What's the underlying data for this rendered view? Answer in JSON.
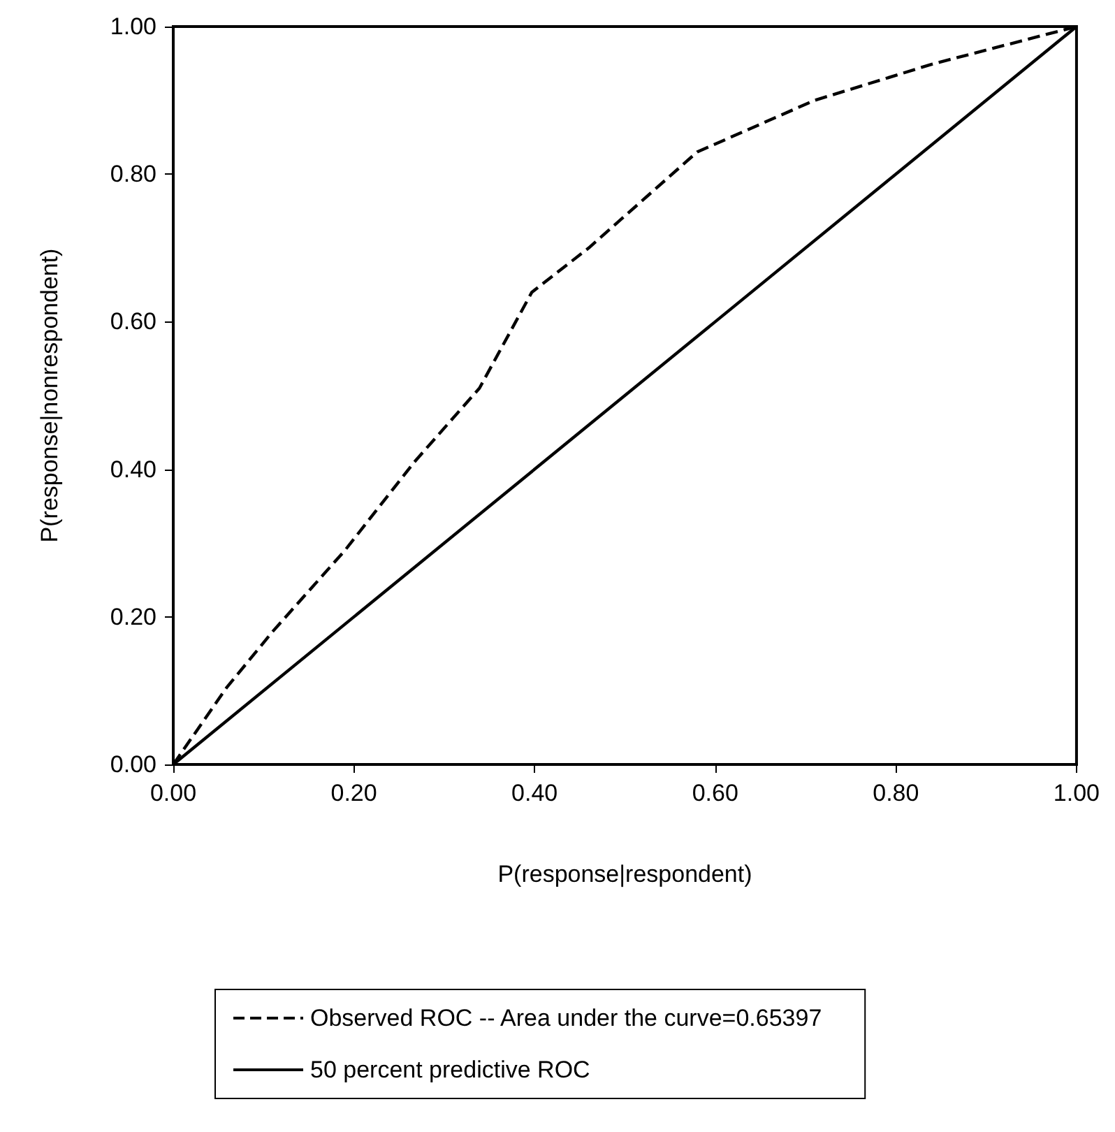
{
  "chart_data": {
    "type": "line",
    "xlabel": "P(response|respondent)",
    "ylabel": "P(response|nonrespondent)",
    "xlim": [
      0,
      1
    ],
    "ylim": [
      0,
      1
    ],
    "xticks": [
      {
        "value": 0,
        "label": "0.00"
      },
      {
        "value": 0.2,
        "label": "0.20"
      },
      {
        "value": 0.4,
        "label": "0.40"
      },
      {
        "value": 0.6,
        "label": "0.60"
      },
      {
        "value": 0.8,
        "label": "0.80"
      },
      {
        "value": 1,
        "label": "1.00"
      }
    ],
    "yticks": [
      {
        "value": 0,
        "label": "0.00"
      },
      {
        "value": 0.2,
        "label": "0.20"
      },
      {
        "value": 0.4,
        "label": "0.40"
      },
      {
        "value": 0.6,
        "label": "0.60"
      },
      {
        "value": 0.8,
        "label": "0.80"
      },
      {
        "value": 1,
        "label": "1.00"
      }
    ],
    "grid": false,
    "legend": "bottom",
    "marker": "none",
    "series": [
      {
        "name": "Observed ROC -- Area under the curve=0.65397",
        "color": "#000000",
        "line_style": "dashed",
        "x": [
          0,
          0.059,
          0.11,
          0.19,
          0.267,
          0.339,
          0.397,
          0.46,
          0.58,
          0.71,
          0.84,
          1
        ],
        "values": [
          0,
          0.104,
          0.18,
          0.29,
          0.41,
          0.51,
          0.64,
          0.7,
          0.83,
          0.9,
          0.949,
          1
        ]
      },
      {
        "name": "50 percent predictive ROC",
        "color": "#000000",
        "line_style": "solid",
        "x": [
          0,
          1
        ],
        "values": [
          0,
          1
        ]
      }
    ]
  }
}
